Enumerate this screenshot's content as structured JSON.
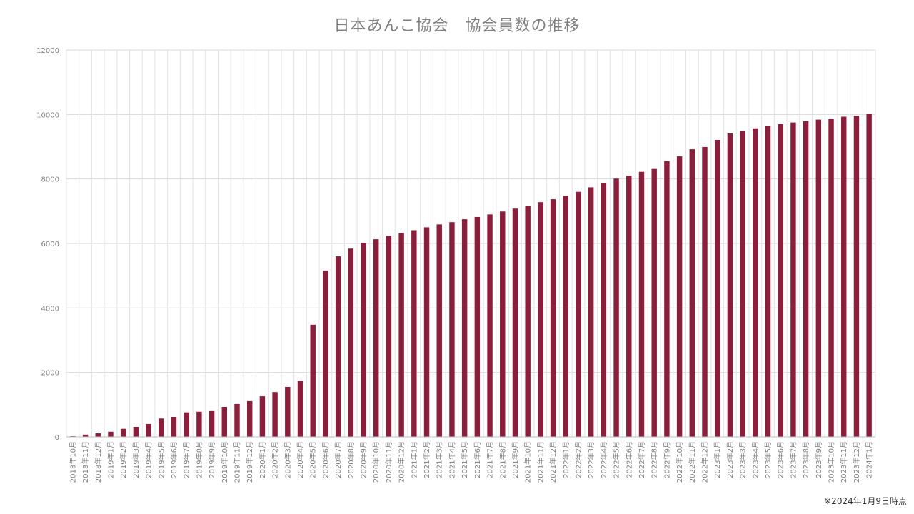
{
  "chart_data": {
    "type": "bar",
    "title": "日本あんこ協会　協会員数の推移",
    "xlabel": "",
    "ylabel": "",
    "ylim": [
      0,
      12000
    ],
    "yticks": [
      0,
      2000,
      4000,
      6000,
      8000,
      10000,
      12000
    ],
    "grid": true,
    "bar_color": "#8b1e3a",
    "categories": [
      "2018年10月",
      "2018年11月",
      "2018年12月",
      "2019年1月",
      "2019年2月",
      "2019年3月",
      "2019年4月",
      "2019年5月",
      "2019年6月",
      "2019年7月",
      "2019年8月",
      "2019年9月",
      "2019年10月",
      "2019年11月",
      "2019年12月",
      "2020年1月",
      "2020年2月",
      "2020年3月",
      "2020年4月",
      "2020年5月",
      "2020年6月",
      "2020年7月",
      "2020年8月",
      "2020年9月",
      "2020年10月",
      "2020年11月",
      "2020年12月",
      "2021年1月",
      "2021年2月",
      "2021年3月",
      "2021年4月",
      "2021年5月",
      "2021年6月",
      "2021年7月",
      "2021年8月",
      "2021年9月",
      "2021年10月",
      "2021年11月",
      "2021年12月",
      "2022年1月",
      "2022年2月",
      "2022年3月",
      "2022年4月",
      "2022年5月",
      "2022年6月",
      "2022年7月",
      "2022年8月",
      "2022年9月",
      "2022年10月",
      "2022年11月",
      "2022年12月",
      "2023年1月",
      "2023年2月",
      "2023年3月",
      "2023年4月",
      "2023年5月",
      "2023年6月",
      "2023年7月",
      "2023年8月",
      "2023年9月",
      "2023年10月",
      "2023年11月",
      "2023年12月",
      "2024年1月"
    ],
    "values": [
      20,
      70,
      110,
      160,
      250,
      310,
      400,
      570,
      620,
      760,
      780,
      800,
      930,
      1020,
      1110,
      1260,
      1390,
      1550,
      1740,
      3480,
      5160,
      5600,
      5840,
      6020,
      6130,
      6240,
      6320,
      6410,
      6500,
      6590,
      6660,
      6750,
      6820,
      6900,
      6990,
      7080,
      7170,
      7280,
      7370,
      7480,
      7600,
      7740,
      7880,
      8010,
      8100,
      8220,
      8310,
      8550,
      8700,
      8920,
      8990,
      9210,
      9410,
      9480,
      9570,
      9650,
      9700,
      9750,
      9790,
      9840,
      9870,
      9930,
      9960,
      10010
    ]
  },
  "footnote": "※2024年1月9日時点"
}
